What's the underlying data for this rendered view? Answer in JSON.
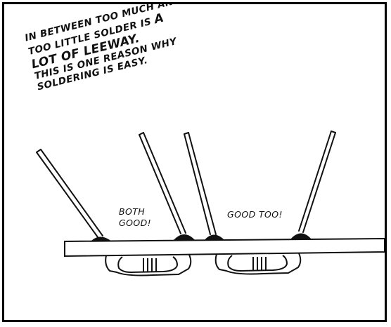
{
  "caption": {
    "line1": "IN BETWEEN TOO MUCH AND",
    "line2_start": "TOO LITTLE SOLDER IS ",
    "line2_end": "A",
    "line3": "LOT OF LEEWAY.",
    "line4": "THIS IS ONE REASON WHY",
    "line5": "SOLDERING IS EASY."
  },
  "labels": {
    "both_good_line1": "BOTH",
    "both_good_line2": "GOOD!",
    "good_too": "GOOD TOO!"
  },
  "icons": [
    "circuit-board",
    "component-lead",
    "solder-joint",
    "resistor"
  ]
}
